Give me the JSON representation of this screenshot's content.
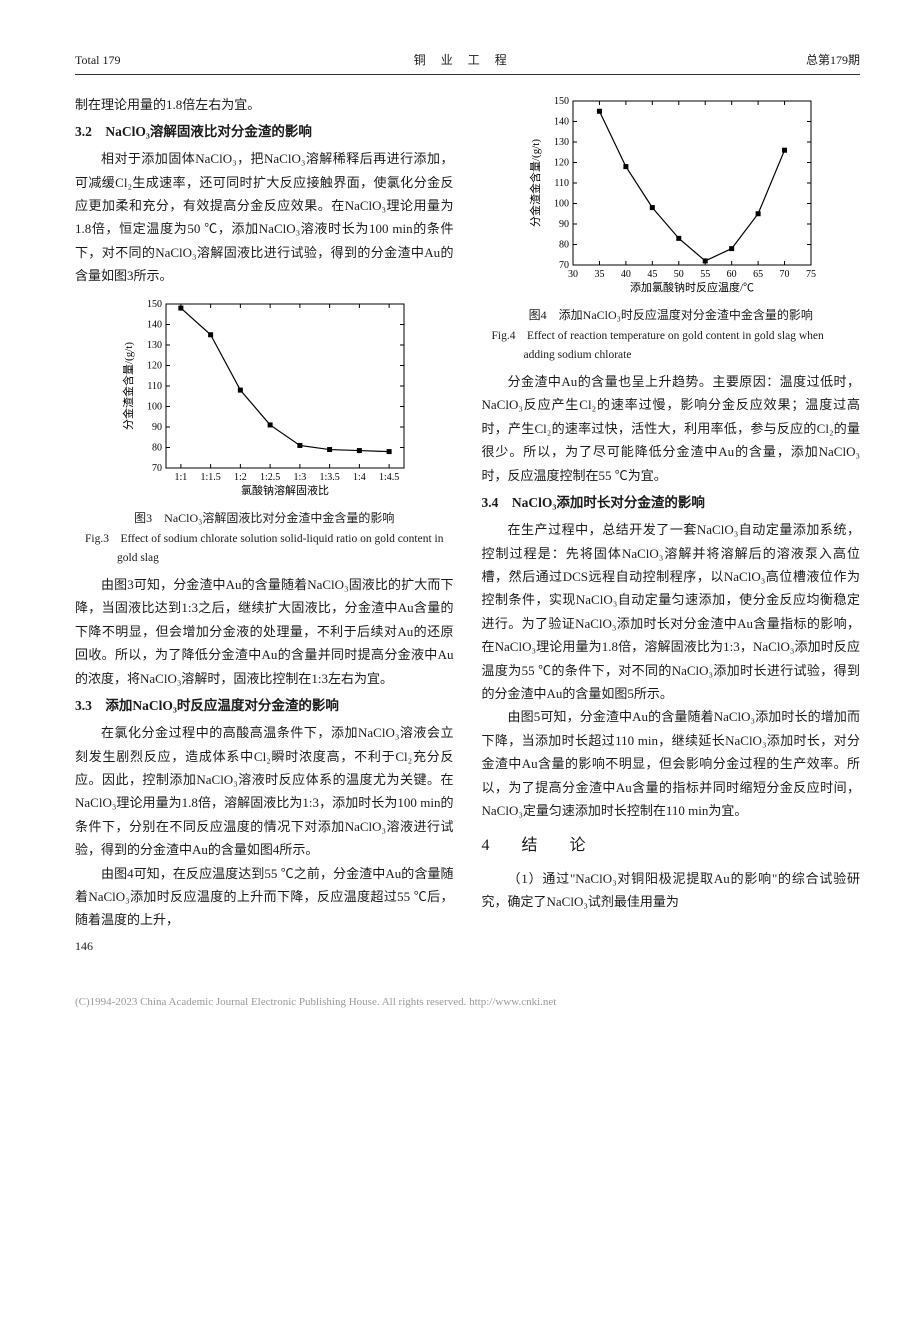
{
  "header": {
    "left": "Total 179",
    "center": "铜 业 工 程",
    "right": "总第179期"
  },
  "col1": {
    "p1": "制在理论用量的1.8倍左右为宜。",
    "sec32_title": "3.2　NaClO₃溶解固液比对分金渣的影响",
    "p2": "相对于添加固体NaClO₃，把NaClO₃溶解稀释后再进行添加，可减缓Cl₂生成速率，还可同时扩大反应接触界面，使氯化分金反应更加柔和充分，有效提高分金反应效果。在NaClO₃理论用量为1.8倍，恒定温度为50 ℃，添加NaClO₃溶液时长为100 min的条件下，对不同的NaClO₃溶解固液比进行试验，得到的分金渣中Au的含量如图3所示。",
    "fig3": {
      "caption_cn": "图3　NaClO₃溶解固液比对分金渣中金含量的影响",
      "caption_en": "Fig.3　Effect of sodium chlorate solution solid-liquid ratio on gold content in gold slag",
      "y_label": "分金渣金含量/(g/t)",
      "x_label": "氯酸钠溶解固液比",
      "y_ticks": [
        70,
        80,
        90,
        100,
        110,
        120,
        130,
        140,
        150
      ],
      "x_ticks": [
        "1:1",
        "1:1.5",
        "1:2",
        "1:2.5",
        "1:3",
        "1:3.5",
        "1:4",
        "1:4.5"
      ],
      "points": [
        148,
        135,
        108,
        91,
        81,
        79,
        78.5,
        78
      ],
      "line_color": "#000000",
      "marker_color": "#000000",
      "marker_style": "square",
      "background": "#ffffff",
      "font_size": 10
    },
    "p3": "由图3可知，分金渣中Au的含量随着NaClO₃固液比的扩大而下降，当固液比达到1:3之后，继续扩大固液比，分金渣中Au含量的下降不明显，但会增加分金液的处理量，不利于后续对Au的还原回收。所以，为了降低分金渣中Au的含量并同时提高分金液中Au的浓度，将NaClO₃溶解时，固液比控制在1:3左右为宜。",
    "sec33_title": "3.3　添加NaClO₃时反应温度对分金渣的影响",
    "p4": "在氯化分金过程中的高酸高温条件下，添加NaClO₃溶液会立刻发生剧烈反应，造成体系中Cl₂瞬时浓度高，不利于Cl₂充分反应。因此，控制添加NaClO₃溶液时反应体系的温度尤为关键。在NaClO₃理论用量为1.8倍，溶解固液比为1:3，添加时长为100 min的条件下，分别在不同反应温度的情况下对添加NaClO₃溶液进行试验，得到的分金渣中Au的含量如图4所示。",
    "p5": "由图4可知，在反应温度达到55 ℃之前，分金渣中Au的含量随着NaClO₃添加时反应温度的上升而下降，反应温度超过55 ℃后，随着温度的上升，",
    "page_num": "146"
  },
  "col2": {
    "fig4": {
      "caption_cn": "图4　添加NaClO₃时反应温度对分金渣中金含量的影响",
      "caption_en": "Fig.4　Effect of reaction temperature on gold content in gold slag when adding sodium chlorate",
      "y_label": "分金渣金含量/(g/t)",
      "x_label": "添加氯酸钠时反应温度/℃",
      "y_ticks": [
        70,
        80,
        90,
        100,
        110,
        120,
        130,
        140,
        150
      ],
      "x_ticks": [
        30,
        35,
        40,
        45,
        50,
        55,
        60,
        65,
        70,
        75
      ],
      "points_x": [
        35,
        40,
        45,
        50,
        55,
        60,
        65,
        70
      ],
      "points_y": [
        145,
        118,
        98,
        83,
        72,
        78,
        95,
        126
      ],
      "line_color": "#000000",
      "marker_color": "#000000",
      "marker_style": "square",
      "background": "#ffffff",
      "font_size": 10
    },
    "p1": "分金渣中Au的含量也呈上升趋势。主要原因：温度过低时，NaClO₃反应产生Cl₂的速率过慢，影响分金反应效果；温度过高时，产生Cl₂的速率过快，活性大，利用率低，参与反应的Cl₂的量很少。所以，为了尽可能降低分金渣中Au的含量，添加NaClO₃时，反应温度控制在55 ℃为宜。",
    "sec34_title": "3.4　NaClO₃添加时长对分金渣的影响",
    "p2": "在生产过程中，总结开发了一套NaClO₃自动定量添加系统，控制过程是：先将固体NaClO₃溶解并将溶解后的溶液泵入高位槽，然后通过DCS远程自动控制程序，以NaClO₃高位槽液位作为控制条件，实现NaClO₃自动定量匀速添加，使分金反应均衡稳定进行。为了验证NaClO₃添加时长对分金渣中Au含量指标的影响，在NaClO₃理论用量为1.8倍，溶解固液比为1:3，NaClO₃添加时反应温度为55 ℃的条件下，对不同的NaClO₃添加时长进行试验，得到的分金渣中Au的含量如图5所示。",
    "p3": "由图5可知，分金渣中Au的含量随着NaClO₃添加时长的增加而下降，当添加时长超过110 min，继续延长NaClO₃添加时长，对分金渣中Au含量的影响不明显，但会影响分金过程的生产效率。所以，为了提高分金渣中Au含量的指标并同时缩短分金反应时间，NaClO₃定量匀速添加时长控制在110 min为宜。",
    "sec4_title": "4　结　论",
    "p4": "（1）通过\"NaClO₃对铜阳极泥提取Au的影响\"的综合试验研究，确定了NaClO₃试剂最佳用量为"
  },
  "footer": "(C)1994-2023 China Academic Journal Electronic Publishing House. All rights reserved.    http://www.cnki.net"
}
